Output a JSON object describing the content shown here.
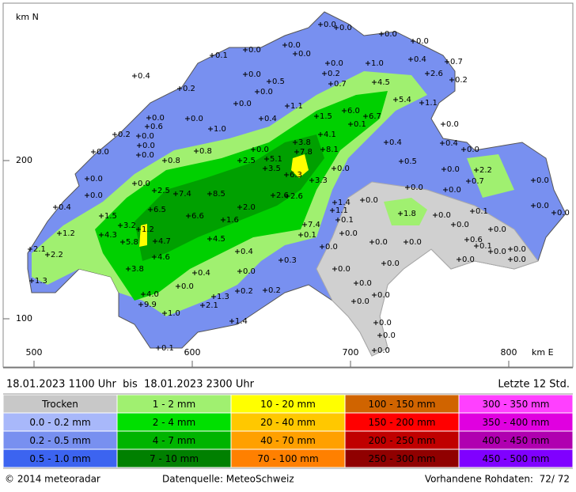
{
  "map": {
    "y_axis_label": "km N",
    "x_axis_label": "km E",
    "xticks": [
      500,
      600,
      700,
      800
    ],
    "yticks": [
      200,
      100
    ],
    "stations": [
      "0.0",
      "0.0",
      "0.0",
      "0.0",
      "0.0",
      "0.0",
      "0.1",
      "0.0",
      "0.0",
      "1.0",
      "0.4",
      "0.7",
      "2.6",
      "0.2",
      "0.4",
      "0.2",
      "0.0",
      "0.5",
      "0.7",
      "4.5",
      "0.2",
      "0.0",
      "5.4",
      "1.1",
      "0.0",
      "1.1",
      "0.0",
      "0.4",
      "1.5",
      "6.0",
      "6.7",
      "0.6",
      "0.0",
      "0.1",
      "0.0",
      "0.2",
      "0.0",
      "1.0",
      "4.1",
      "0.0",
      "3.8",
      "0.4",
      "0.4",
      "0.0",
      "0.0",
      "0.8",
      "0.0",
      "7.8",
      "8.1",
      "0.0",
      "0.8",
      "2.5",
      "5.1",
      "0.5",
      "3.5",
      "0.0",
      "0.0",
      "2.2",
      "6.3",
      "3.3",
      "0.7",
      "0.0",
      "0.0",
      "0.0",
      "0.0",
      "2.5",
      "7.4",
      "8.5",
      "2.6",
      "2.6",
      "0.0",
      "0.0",
      "0.0",
      "1.4",
      "0.4",
      "2.0",
      "6.5",
      "6.6",
      "1.1",
      "0.0",
      "1.5",
      "1.6",
      "7.4",
      "0.1",
      "1.8",
      "0.0",
      "0.1",
      "0.0",
      "3.2",
      "1.2",
      "0.0",
      "1.2",
      "4.3",
      "0.1",
      "0.0",
      "0.0",
      "5.8",
      "4.7",
      "4.5",
      "0.0",
      "0.0",
      "0.6",
      "0.1",
      "2.1",
      "2.2",
      "0.4",
      "0.0",
      "0.0",
      "0.0",
      "4.6",
      "0.3",
      "0.0",
      "0.0",
      "0.0",
      "3.8",
      "0.0",
      "0.4",
      "0.0",
      "1.3",
      "0.0",
      "0.0",
      "0.2",
      "0.2",
      "4.0",
      "1.3",
      "0.0",
      "0.0",
      "9.9",
      "2.1",
      "1.0",
      "1.4",
      "0.0",
      "0.0",
      "0.1",
      "0.0"
    ]
  },
  "footer": {
    "period": "18.01.2023 1100 Uhr  bis  18.01.2023 2300 Uhr",
    "window": "Letzte 12 Std.",
    "legend": [
      [
        {
          "label": "Trocken",
          "color": "#c8c8c8"
        },
        {
          "label": "0.0 - 0.2 mm",
          "color": "#a8b8fa"
        },
        {
          "label": "0.2 - 0.5 mm",
          "color": "#7890f0"
        },
        {
          "label": "0.5 - 1.0 mm",
          "color": "#3c64f0"
        }
      ],
      [
        {
          "label": "1 - 2 mm",
          "color": "#a0f070"
        },
        {
          "label": "2 - 4 mm",
          "color": "#00e000"
        },
        {
          "label": "4 - 7 mm",
          "color": "#00b400"
        },
        {
          "label": "7 - 10 mm",
          "color": "#008000"
        }
      ],
      [
        {
          "label": "10 - 20 mm",
          "color": "#ffff00"
        },
        {
          "label": "20 - 40 mm",
          "color": "#ffc800"
        },
        {
          "label": "40 - 70 mm",
          "color": "#ffa000"
        },
        {
          "label": "70 - 100 mm",
          "color": "#ff8000"
        }
      ],
      [
        {
          "label": "100 - 150 mm",
          "color": "#d06400"
        },
        {
          "label": "150 - 200 mm",
          "color": "#ff0000"
        },
        {
          "label": "200 - 250 mm",
          "color": "#c00000"
        },
        {
          "label": "250 - 300 mm",
          "color": "#900000"
        }
      ],
      [
        {
          "label": "300 - 350 mm",
          "color": "#ff40ff"
        },
        {
          "label": "350 - 400 mm",
          "color": "#e000e0"
        },
        {
          "label": "400 - 450 mm",
          "color": "#b000b0"
        },
        {
          "label": "450 - 500 mm",
          "color": "#8000ff"
        }
      ]
    ],
    "copyright": "© 2014 meteoradar",
    "source": "Datenquelle: MeteoSchweiz",
    "raw_data": "Vorhandene Rohdaten:  72/ 72"
  }
}
